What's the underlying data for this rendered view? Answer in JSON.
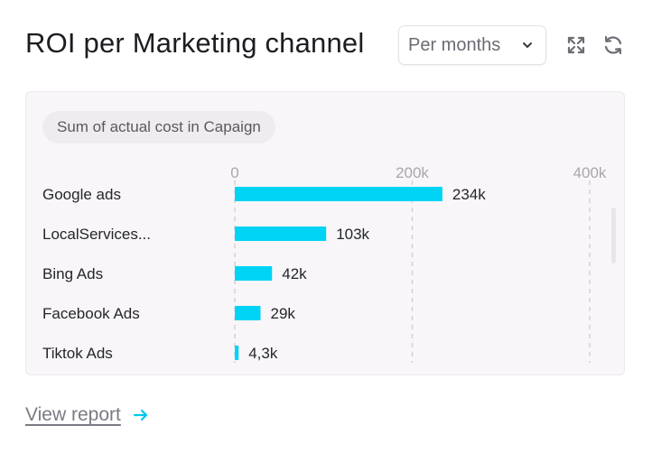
{
  "header": {
    "title": "ROI per Marketing channel",
    "period_select": {
      "value": "Per months",
      "icon": "chevron-down-icon"
    },
    "actions": [
      {
        "name": "expand",
        "icon": "expand-arrows-icon"
      },
      {
        "name": "refresh",
        "icon": "refresh-icon"
      }
    ]
  },
  "panel": {
    "metric_label": "Sum of actual cost in Capaign"
  },
  "chart_data": {
    "type": "bar",
    "orientation": "horizontal",
    "categories": [
      "Google ads",
      "LocalServices...",
      "Bing Ads",
      "Facebook Ads",
      "Tiktok Ads"
    ],
    "values": [
      234000,
      103000,
      42000,
      29000,
      4300
    ],
    "value_labels": [
      "234k",
      "103k",
      "42k",
      "29k",
      "4,3k"
    ],
    "title": "",
    "xlabel": "",
    "ylabel": "",
    "xlim": [
      0,
      400000
    ],
    "ticks": [
      0,
      200000,
      400000
    ],
    "tick_labels": [
      "0",
      "200k",
      "400k"
    ],
    "grid": true,
    "legend": "none",
    "bar_color": "#00d4f5"
  },
  "footer": {
    "link_label": "View report",
    "link_icon": "arrow-right-icon",
    "accent": "#00c8ea"
  },
  "colors": {
    "bar": "#00d4f5",
    "grid": "#cfccd2",
    "panel_bg": "#f8f6f8"
  }
}
